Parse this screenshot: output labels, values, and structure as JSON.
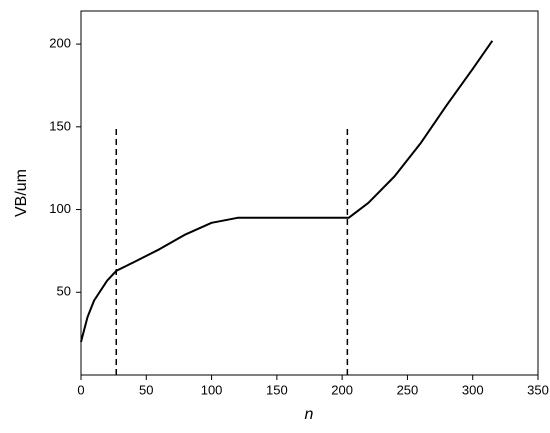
{
  "chart_data": {
    "type": "line",
    "xlabel": "n",
    "ylabel": "VB/um",
    "x": [
      0,
      5,
      10,
      20,
      27,
      40,
      60,
      80,
      100,
      120,
      150,
      200,
      205,
      220,
      240,
      260,
      280,
      300,
      315
    ],
    "values": [
      20,
      35,
      45,
      57,
      63,
      68,
      76,
      85,
      92,
      95,
      95,
      95,
      95,
      104,
      120,
      140,
      163,
      185,
      202
    ],
    "color": "#000000",
    "xlim": [
      0,
      350
    ],
    "xticks": [
      0,
      50,
      100,
      150,
      200,
      250,
      300,
      350
    ],
    "ylim": [
      0,
      220
    ],
    "yticks": [
      50,
      100,
      150,
      200
    ],
    "vlines": [
      27,
      204
    ],
    "vline_top": 150
  }
}
